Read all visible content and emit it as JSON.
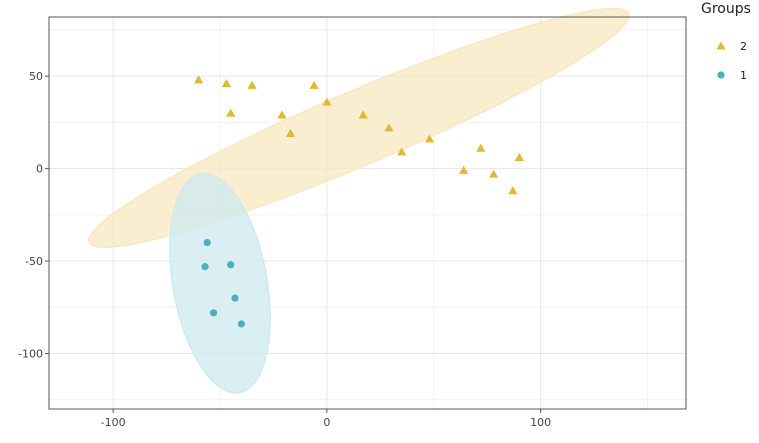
{
  "chart_data": {
    "type": "scatter",
    "title": "",
    "xlabel": "",
    "ylabel": "",
    "xlim": [
      -130,
      168
    ],
    "ylim": [
      -130,
      82
    ],
    "x_ticks": [
      -100,
      0,
      100
    ],
    "y_ticks": [
      50,
      0,
      -50,
      -100
    ],
    "x_tick_labels": [
      "-100",
      "0",
      "100"
    ],
    "y_tick_labels": [
      "50",
      "0",
      "-50",
      "-100"
    ],
    "grid": true,
    "legend": {
      "title": "Groups",
      "placement": "right",
      "entries": [
        {
          "label": "2",
          "marker": "triangle",
          "color": "#E1B733"
        },
        {
          "label": "1",
          "marker": "circle",
          "color": "#4BAFBD"
        }
      ]
    },
    "series": [
      {
        "name": "2",
        "marker": "triangle",
        "color": "#E1B733",
        "ellipse_color": "#F7E8C0",
        "points": [
          {
            "x": -60,
            "y": 48
          },
          {
            "x": -47,
            "y": 46
          },
          {
            "x": -35,
            "y": 45
          },
          {
            "x": -45,
            "y": 30
          },
          {
            "x": -21,
            "y": 29
          },
          {
            "x": -17,
            "y": 19
          },
          {
            "x": -6,
            "y": 45
          },
          {
            "x": 0,
            "y": 36
          },
          {
            "x": 17,
            "y": 29
          },
          {
            "x": 29,
            "y": 22
          },
          {
            "x": 35,
            "y": 9
          },
          {
            "x": 48,
            "y": 16
          },
          {
            "x": 64,
            "y": -1
          },
          {
            "x": 72,
            "y": 11
          },
          {
            "x": 78,
            "y": -3
          },
          {
            "x": 87,
            "y": -12
          },
          {
            "x": 90,
            "y": 6
          }
        ],
        "ellipse": {
          "cx": 15,
          "cy": 22,
          "rx": 137,
          "ry": 20,
          "angle_deg": -23
        }
      },
      {
        "name": "1",
        "marker": "circle",
        "color": "#4BAFBD",
        "ellipse_color": "#CDEAF0",
        "points": [
          {
            "x": -56,
            "y": -40
          },
          {
            "x": -57,
            "y": -53
          },
          {
            "x": -45,
            "y": -52
          },
          {
            "x": -43,
            "y": -70
          },
          {
            "x": -53,
            "y": -78
          },
          {
            "x": -40,
            "y": -84
          }
        ],
        "ellipse": {
          "cx": -50,
          "cy": -62,
          "rx": 22,
          "ry": 60,
          "angle_deg": -10
        }
      }
    ]
  }
}
